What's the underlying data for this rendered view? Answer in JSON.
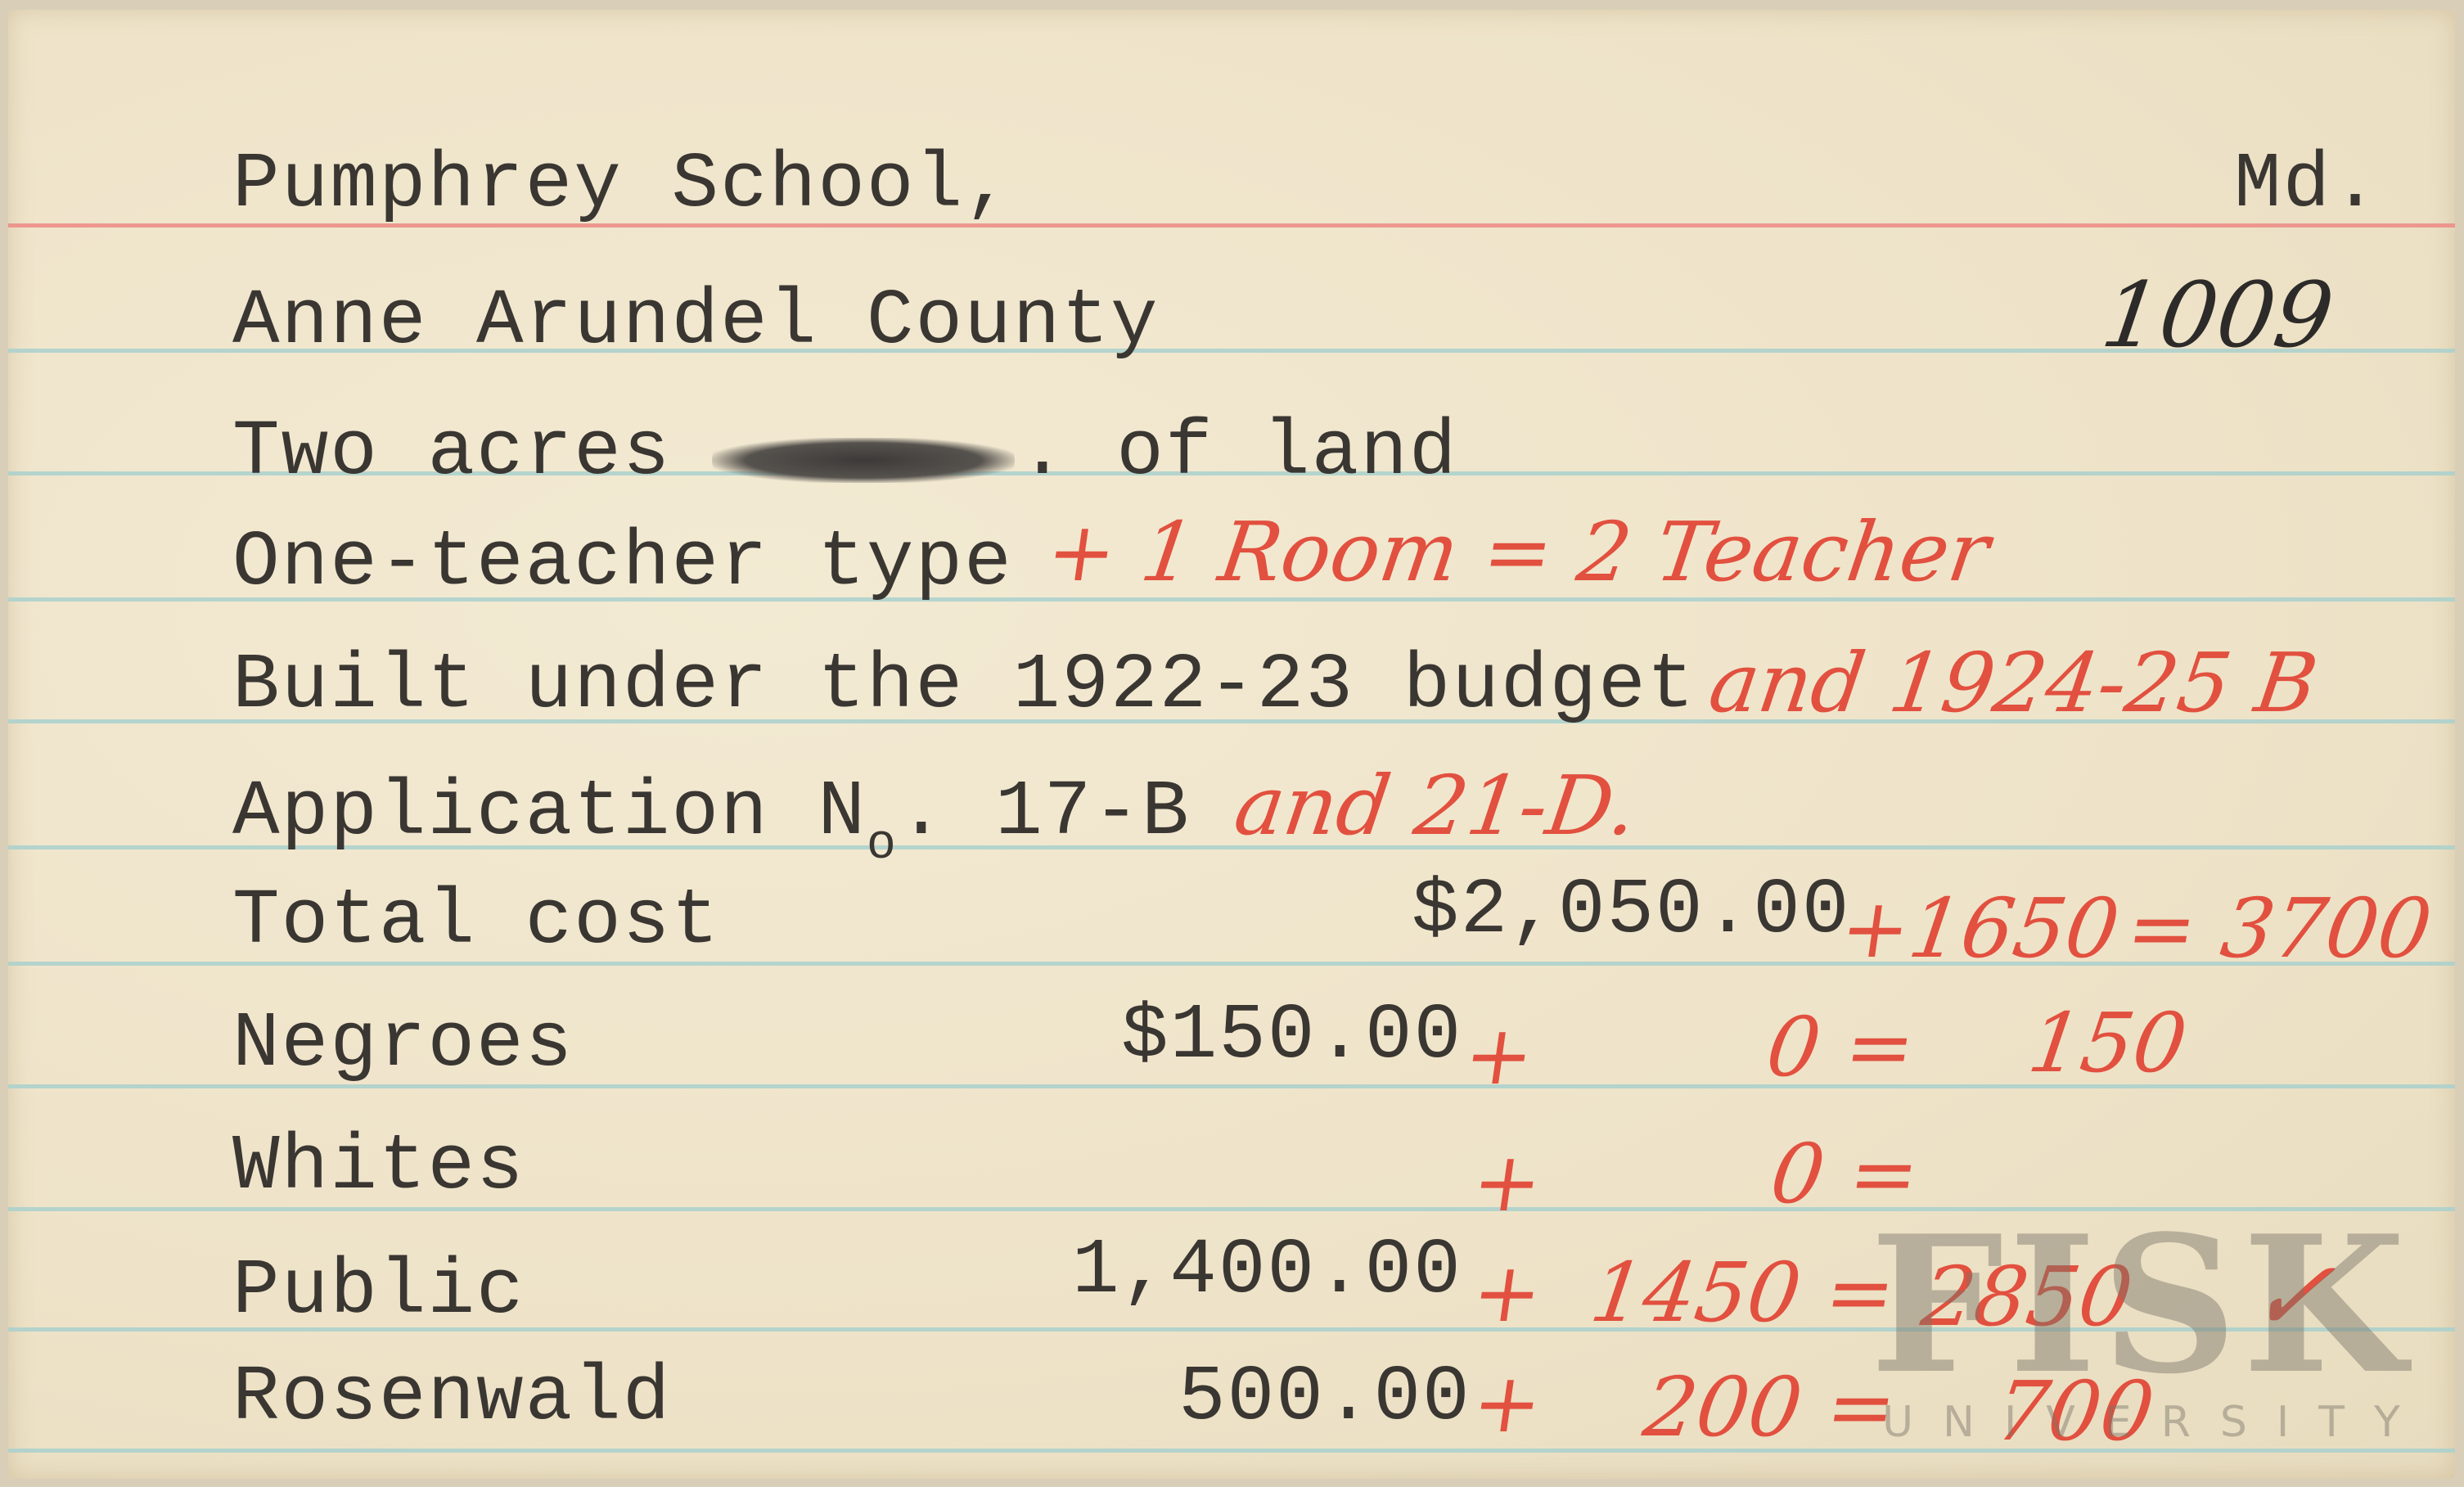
{
  "card": {
    "header": {
      "school": "Pumphrey School,",
      "state": "Md."
    },
    "county": "Anne Arundel County",
    "card_number": "1009",
    "land": {
      "prefix": "Two acres",
      "suffix": ". of land"
    },
    "type": {
      "typed": "One-teacher type",
      "handwritten": "+ 1 Room = 2 Teacher"
    },
    "built": {
      "typed": "Built under the 1922-23 budget",
      "handwritten": "and 1924-25 B"
    },
    "application": {
      "typed_prefix": "Application N",
      "typed_sub": "o",
      "typed_suffix": ". 17-B",
      "handwritten": "and 21-D."
    },
    "rows": [
      {
        "label": "Total cost",
        "amount": "$2,050.00",
        "plus": "+1650",
        "eq": "= 3700"
      },
      {
        "label": "Negroes",
        "amount": "$150.00",
        "plus": "+",
        "added": "0 =",
        "total": "150"
      },
      {
        "label": "Whites",
        "amount": "",
        "plus": "+",
        "added": "0 =",
        "total": ""
      },
      {
        "label": "Public",
        "amount": "1,400.00",
        "plus": "+",
        "added": "1450 =",
        "total": "2850",
        "check": "✓"
      },
      {
        "label": "Rosenwald",
        "amount": "500.00",
        "plus": "+",
        "added": "200 =",
        "total": "700"
      }
    ]
  },
  "watermark": {
    "line1": "FISK",
    "line2": "UNIVERSITY"
  },
  "colors": {
    "paper": "#f0e6cd",
    "ink_red": "#e2503f",
    "typewriter": "#3a3632",
    "rule_blue": "#a9d0cc",
    "rule_red": "#ec8a84"
  }
}
